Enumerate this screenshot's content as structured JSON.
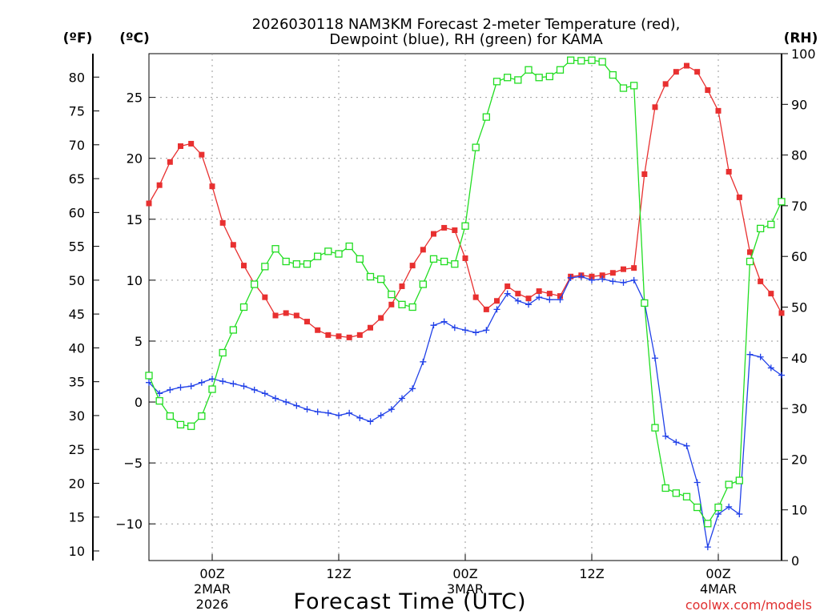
{
  "chart_data": {
    "type": "line",
    "title_line1": "2026030118 NAM3KM Forecast 2-meter Temperature (red),",
    "title_line2": "Dewpoint (blue), RH (green) for KAMA",
    "xlabel": "Forecast Time (UTC)",
    "credit": "coolwx.com/models",
    "units": {
      "f": "(ºF)",
      "c": "(ºC)",
      "rh": "(RH)"
    },
    "x_range_hours": [
      0,
      60
    ],
    "celsius_axis": {
      "ylim": [
        -13.01,
        28.59
      ],
      "ticks": [
        -10,
        -5,
        0,
        5,
        10,
        15,
        20,
        25
      ],
      "tick_labels": [
        "−10",
        "−5",
        "0",
        "5",
        "10",
        "15",
        "20",
        "25"
      ]
    },
    "fahrenheit_axis": {
      "ticks": [
        10,
        15,
        20,
        25,
        30,
        35,
        40,
        45,
        50,
        55,
        60,
        65,
        70,
        75,
        80
      ],
      "tick_labels": [
        "10",
        "15",
        "20",
        "25",
        "30",
        "35",
        "40",
        "45",
        "50",
        "55",
        "60",
        "65",
        "70",
        "75",
        "80"
      ]
    },
    "rh_axis": {
      "ylim": [
        0,
        100
      ],
      "ticks": [
        0,
        10,
        20,
        30,
        40,
        50,
        60,
        70,
        80,
        90,
        100
      ],
      "tick_labels": [
        "0",
        "10",
        "20",
        "30",
        "40",
        "50",
        "60",
        "70",
        "80",
        "90",
        "100"
      ]
    },
    "x_ticks": [
      {
        "hour": 6,
        "label": "00Z",
        "sub": "2MAR",
        "sub2": "2026"
      },
      {
        "hour": 18,
        "label": "12Z"
      },
      {
        "hour": 30,
        "label": "00Z",
        "sub": "3MAR"
      },
      {
        "hour": 42,
        "label": "12Z"
      },
      {
        "hour": 54,
        "label": "00Z",
        "sub": "4MAR"
      }
    ],
    "series": [
      {
        "name": "Temperature",
        "units": "C",
        "color": "#e83030",
        "marker": "filled-square",
        "x": [
          0,
          1,
          2,
          3,
          4,
          5,
          6,
          7,
          8,
          9,
          10,
          11,
          12,
          13,
          14,
          15,
          16,
          17,
          18,
          19,
          20,
          21,
          22,
          23,
          24,
          25,
          26,
          27,
          28,
          29,
          30,
          31,
          32,
          33,
          34,
          35,
          36,
          37,
          38,
          39,
          40,
          41,
          42,
          43,
          44,
          45,
          46,
          47,
          48,
          49,
          50,
          51,
          52,
          53,
          54,
          55,
          56,
          57,
          58,
          59,
          60
        ],
        "values": [
          16.3,
          17.8,
          19.7,
          21.0,
          21.2,
          20.3,
          17.7,
          14.7,
          12.9,
          11.2,
          9.7,
          8.6,
          7.1,
          7.3,
          7.1,
          6.6,
          5.9,
          5.5,
          5.4,
          5.3,
          5.5,
          6.1,
          6.9,
          8.0,
          9.5,
          11.2,
          12.5,
          13.8,
          14.3,
          14.1,
          11.8,
          8.6,
          7.6,
          8.3,
          9.5,
          8.9,
          8.5,
          9.1,
          8.9,
          8.7,
          10.3,
          10.4,
          10.3,
          10.4,
          10.6,
          10.9,
          11.0,
          18.7,
          24.2,
          26.1,
          27.1,
          27.6,
          27.1,
          25.6,
          23.9,
          18.9,
          16.8,
          12.3,
          9.9,
          8.9,
          7.3
        ]
      },
      {
        "name": "Dewpoint",
        "units": "C",
        "color": "#2040e8",
        "marker": "plus",
        "x": [
          0,
          1,
          2,
          3,
          4,
          5,
          6,
          7,
          8,
          9,
          10,
          11,
          12,
          13,
          14,
          15,
          16,
          17,
          18,
          19,
          20,
          21,
          22,
          23,
          24,
          25,
          26,
          27,
          28,
          29,
          30,
          31,
          32,
          33,
          34,
          35,
          36,
          37,
          38,
          39,
          40,
          41,
          42,
          43,
          44,
          45,
          46,
          47,
          48,
          49,
          50,
          51,
          52,
          53,
          54,
          55,
          56,
          57,
          58,
          59,
          60
        ],
        "values": [
          1.6,
          0.7,
          1.0,
          1.2,
          1.3,
          1.6,
          1.9,
          1.7,
          1.5,
          1.3,
          1.0,
          0.7,
          0.3,
          0.0,
          -0.3,
          -0.6,
          -0.8,
          -0.9,
          -1.1,
          -0.9,
          -1.3,
          -1.6,
          -1.1,
          -0.6,
          0.3,
          1.1,
          3.3,
          6.3,
          6.6,
          6.1,
          5.9,
          5.7,
          5.9,
          7.6,
          8.9,
          8.3,
          8.0,
          8.6,
          8.4,
          8.4,
          10.2,
          10.3,
          10.0,
          10.1,
          9.9,
          9.8,
          10.0,
          8.2,
          3.6,
          -2.8,
          -3.3,
          -3.6,
          -6.6,
          -11.9,
          -9.2,
          -8.6,
          -9.2,
          3.9,
          3.7,
          2.8,
          2.2
        ]
      },
      {
        "name": "RH",
        "units": "%",
        "color": "#22dd22",
        "marker": "open-square",
        "x": [
          0,
          1,
          2,
          3,
          4,
          5,
          6,
          7,
          8,
          9,
          10,
          11,
          12,
          13,
          14,
          15,
          16,
          17,
          18,
          19,
          20,
          21,
          22,
          23,
          24,
          25,
          26,
          27,
          28,
          29,
          30,
          31,
          32,
          33,
          34,
          35,
          36,
          37,
          38,
          39,
          40,
          41,
          42,
          43,
          44,
          45,
          46,
          47,
          48,
          49,
          50,
          51,
          52,
          53,
          54,
          55,
          56,
          57,
          58,
          59,
          60
        ],
        "values": [
          36.5,
          31.5,
          28.5,
          26.8,
          26.5,
          28.5,
          33.8,
          41.0,
          45.5,
          50.0,
          54.5,
          58.0,
          61.5,
          59.0,
          58.5,
          58.5,
          60.0,
          61.0,
          60.5,
          62.0,
          59.5,
          56.0,
          55.5,
          52.5,
          50.5,
          50.0,
          54.5,
          59.5,
          59.0,
          58.5,
          66.0,
          81.5,
          87.5,
          94.5,
          95.3,
          94.8,
          96.8,
          95.3,
          95.5,
          96.8,
          98.7,
          98.6,
          98.7,
          98.4,
          95.8,
          93.2,
          93.7,
          50.8,
          26.2,
          14.3,
          13.3,
          12.6,
          10.5,
          7.3,
          10.5,
          15.0,
          15.8,
          59.0,
          65.5,
          66.3,
          70.8
        ]
      }
    ]
  }
}
